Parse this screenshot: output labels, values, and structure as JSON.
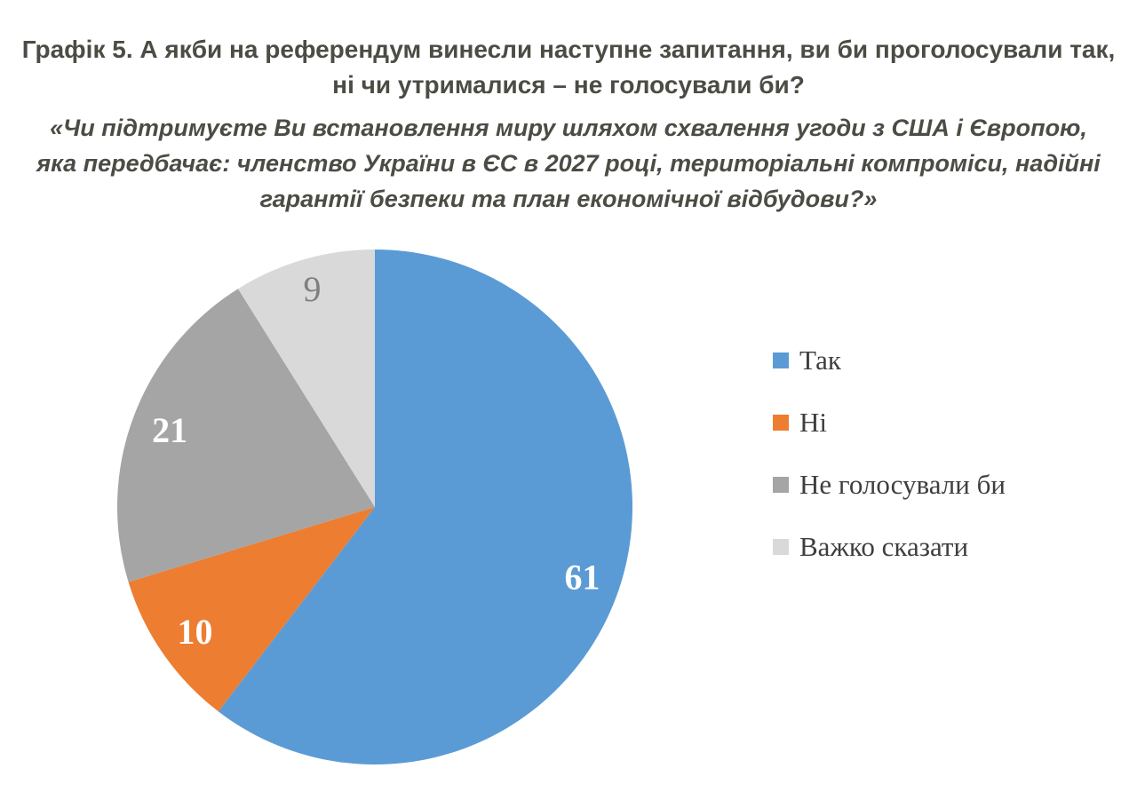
{
  "title": {
    "lines": [
      "Графік 5. А якби на референдум винесли наступне запитання, ви би проголосували так,",
      "ні чи утрималися – не голосували би?"
    ]
  },
  "subtitle": {
    "lines": [
      "«Чи підтримуєте Ви встановлення миру шляхом схвалення угоди з США і Європою,",
      "яка передбачає: членство України в ЄС в 2027 році, територіальні компроміси, надійні",
      "гарантії безпеки та план економічної відбудови?»"
    ]
  },
  "chart_data": {
    "type": "pie",
    "title": "Графік 5. А якби на референдум винесли наступне запитання, ви би проголосували так, ні чи утрималися – не голосували би?",
    "subtitle": "«Чи підтримуєте Ви встановлення миру шляхом схвалення угоди з США і Європою, яка передбачає: членство України в ЄС в 2027 році, територіальні компроміси, надійні гарантії безпеки та план економічної відбудови?»",
    "categories": [
      "Так",
      "Ні",
      "Не голосували би",
      "Важко сказати"
    ],
    "values": [
      61,
      10,
      21,
      9
    ],
    "colors": [
      "#5B9BD5",
      "#ED7D31",
      "#A5A5A5",
      "#D9D9D9"
    ],
    "data_label_colors": [
      "#FFFFFF",
      "#FFFFFF",
      "#FFFFFF",
      "#7F7F7F"
    ],
    "start_angle_deg": 0,
    "direction": "clockwise",
    "legend_position": "right",
    "grid": false
  },
  "legend": {
    "items": [
      {
        "label": "Так",
        "color": "#5B9BD5"
      },
      {
        "label": "Ні",
        "color": "#ED7D31"
      },
      {
        "label": "Не голосували би",
        "color": "#A5A5A5"
      },
      {
        "label": "Важко сказати",
        "color": "#D9D9D9"
      }
    ]
  }
}
